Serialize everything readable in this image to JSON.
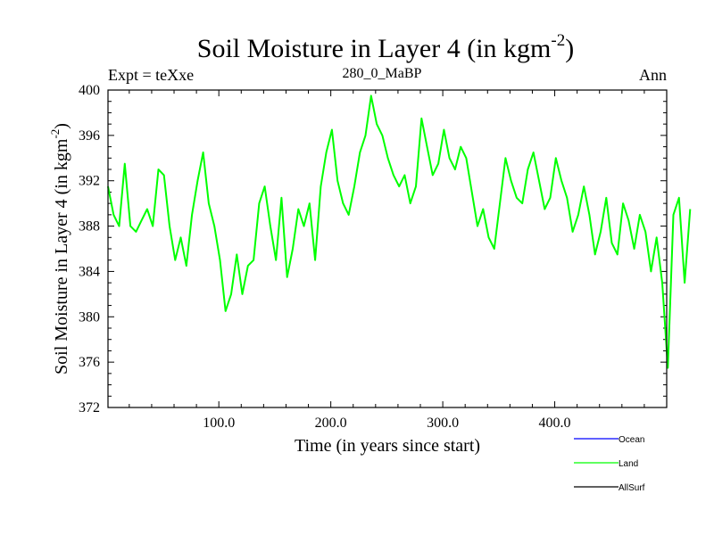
{
  "chart_data": {
    "type": "line",
    "title": "Soil Moisture in Layer 4 (in kgm",
    "title_sup": "-2",
    "title_close": ")",
    "subtitle_left": "Expt = teXxe",
    "subtitle_center": "280_0_MaBP",
    "subtitle_right": "Ann",
    "xlabel": "Time (in years since start)",
    "ylabel": "Soil Moisture in Layer 4 (in kgm",
    "ylabel_sup": "-2",
    "ylabel_close": ")",
    "xlim": [
      1,
      500
    ],
    "ylim": [
      372,
      400
    ],
    "x_ticks": [
      100,
      200,
      300,
      400
    ],
    "x_tick_labels": [
      "100.0",
      "200.0",
      "300.0",
      "400.0"
    ],
    "y_ticks": [
      372,
      376,
      380,
      384,
      388,
      392,
      396,
      400
    ],
    "y_tick_labels": [
      "372",
      "376",
      "380",
      "384",
      "388",
      "392",
      "396",
      "400"
    ],
    "legend": [
      {
        "name": "Ocean",
        "color": "#0000ff"
      },
      {
        "name": "Land",
        "color": "#00ff00"
      },
      {
        "name": "AllSurf",
        "color": "#000000"
      }
    ],
    "series": [
      {
        "name": "Land",
        "color": "#00ff00",
        "x_start": 1,
        "x_step": 5,
        "values": [
          391.5,
          389,
          388,
          393.5,
          388,
          387.5,
          388.5,
          389.5,
          388,
          393,
          392.5,
          388,
          385,
          387,
          384.5,
          389,
          392,
          394.5,
          390,
          388,
          385,
          380.5,
          382,
          385.5,
          382,
          384.5,
          385,
          390,
          391.5,
          388,
          385,
          390.5,
          383.5,
          386,
          389.5,
          388,
          390,
          385,
          391.5,
          394.5,
          396.5,
          392,
          390,
          389,
          391.5,
          394.5,
          396,
          399.5,
          397,
          396,
          394,
          392.5,
          391.5,
          392.5,
          390,
          391.5,
          397.5,
          395,
          392.5,
          393.5,
          396.5,
          394,
          393,
          395,
          394,
          391,
          388,
          389.5,
          387,
          386,
          390,
          394,
          392,
          390.5,
          390,
          393,
          394.5,
          392,
          389.5,
          390.5,
          394,
          392,
          390.5,
          387.5,
          389,
          391.5,
          389,
          385.5,
          387.5,
          390.5,
          386.5,
          385.5,
          390,
          388.5,
          386,
          389,
          387.5,
          384,
          387,
          383,
          375.5,
          389,
          390.5,
          383,
          389.5
        ]
      }
    ]
  }
}
